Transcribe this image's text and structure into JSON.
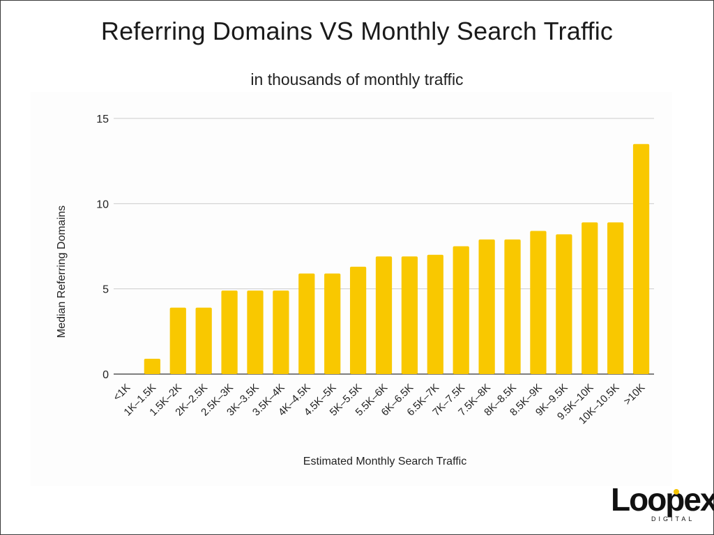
{
  "chart_data": {
    "type": "bar",
    "title": "Referring Domains VS Monthly Search Traffic",
    "subtitle": "in thousands of monthly traffic",
    "xlabel": "Estimated Monthly Search Traffic",
    "ylabel": "Median Referring Domains",
    "ylim": [
      0,
      15
    ],
    "yticks": [
      0,
      5,
      10,
      15
    ],
    "grid": true,
    "categories": [
      "<1K",
      "1K–1.5K",
      "1.5K–2K",
      "2K–2.5K",
      "2.5K–3K",
      "3K–3.5K",
      "3.5K–4K",
      "4K–4.5K",
      "4.5K–5K",
      "5K–5.5K",
      "5.5K–6K",
      "6K–6.5K",
      "6.5K–7K",
      "7K–7.5K",
      "7.5K–8K",
      "8K–8.5K",
      "8.5K–9K",
      "9K–9.5K",
      "9.5K–10K",
      "10K–10.5K",
      ">10K"
    ],
    "values": [
      0,
      0.9,
      3.9,
      3.9,
      4.9,
      4.9,
      4.9,
      5.9,
      5.9,
      6.3,
      6.9,
      6.9,
      7.0,
      7.5,
      7.9,
      7.9,
      8.4,
      8.2,
      8.9,
      8.9,
      13.5
    ],
    "bar_color": "#f9c800"
  },
  "logo": {
    "word": "Loopex",
    "sub": "DIGITAL"
  }
}
